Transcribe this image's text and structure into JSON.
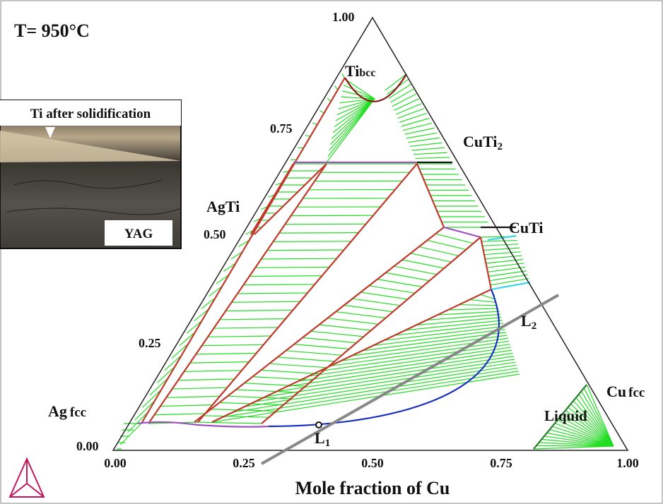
{
  "title": "T= 950°C",
  "top_vertex": "1.00",
  "left_axis_ticks": [
    "0.75",
    "0.50",
    "0.25",
    "0.00"
  ],
  "bottom_axis_ticks": [
    "0.00",
    "0.25",
    "0.50",
    "0.75",
    "1.00"
  ],
  "x_axis_label": "Mole fraction of Cu",
  "phases": [
    {
      "text": "Ti",
      "sub": "bcc"
    },
    {
      "text": "CuTi",
      "sub": "2"
    },
    {
      "text": "CuTi"
    },
    {
      "text": "AgTi"
    },
    {
      "text": "Ag",
      "sub": "fcc"
    },
    {
      "text": "Cu",
      "sub": "fcc"
    },
    {
      "text": "Liquid"
    },
    {
      "text": "L",
      "sub": "2"
    },
    {
      "text": "L",
      "sub": "1"
    }
  ],
  "inset": {
    "caption": "Ti after solidification",
    "label": "YAG"
  }
}
